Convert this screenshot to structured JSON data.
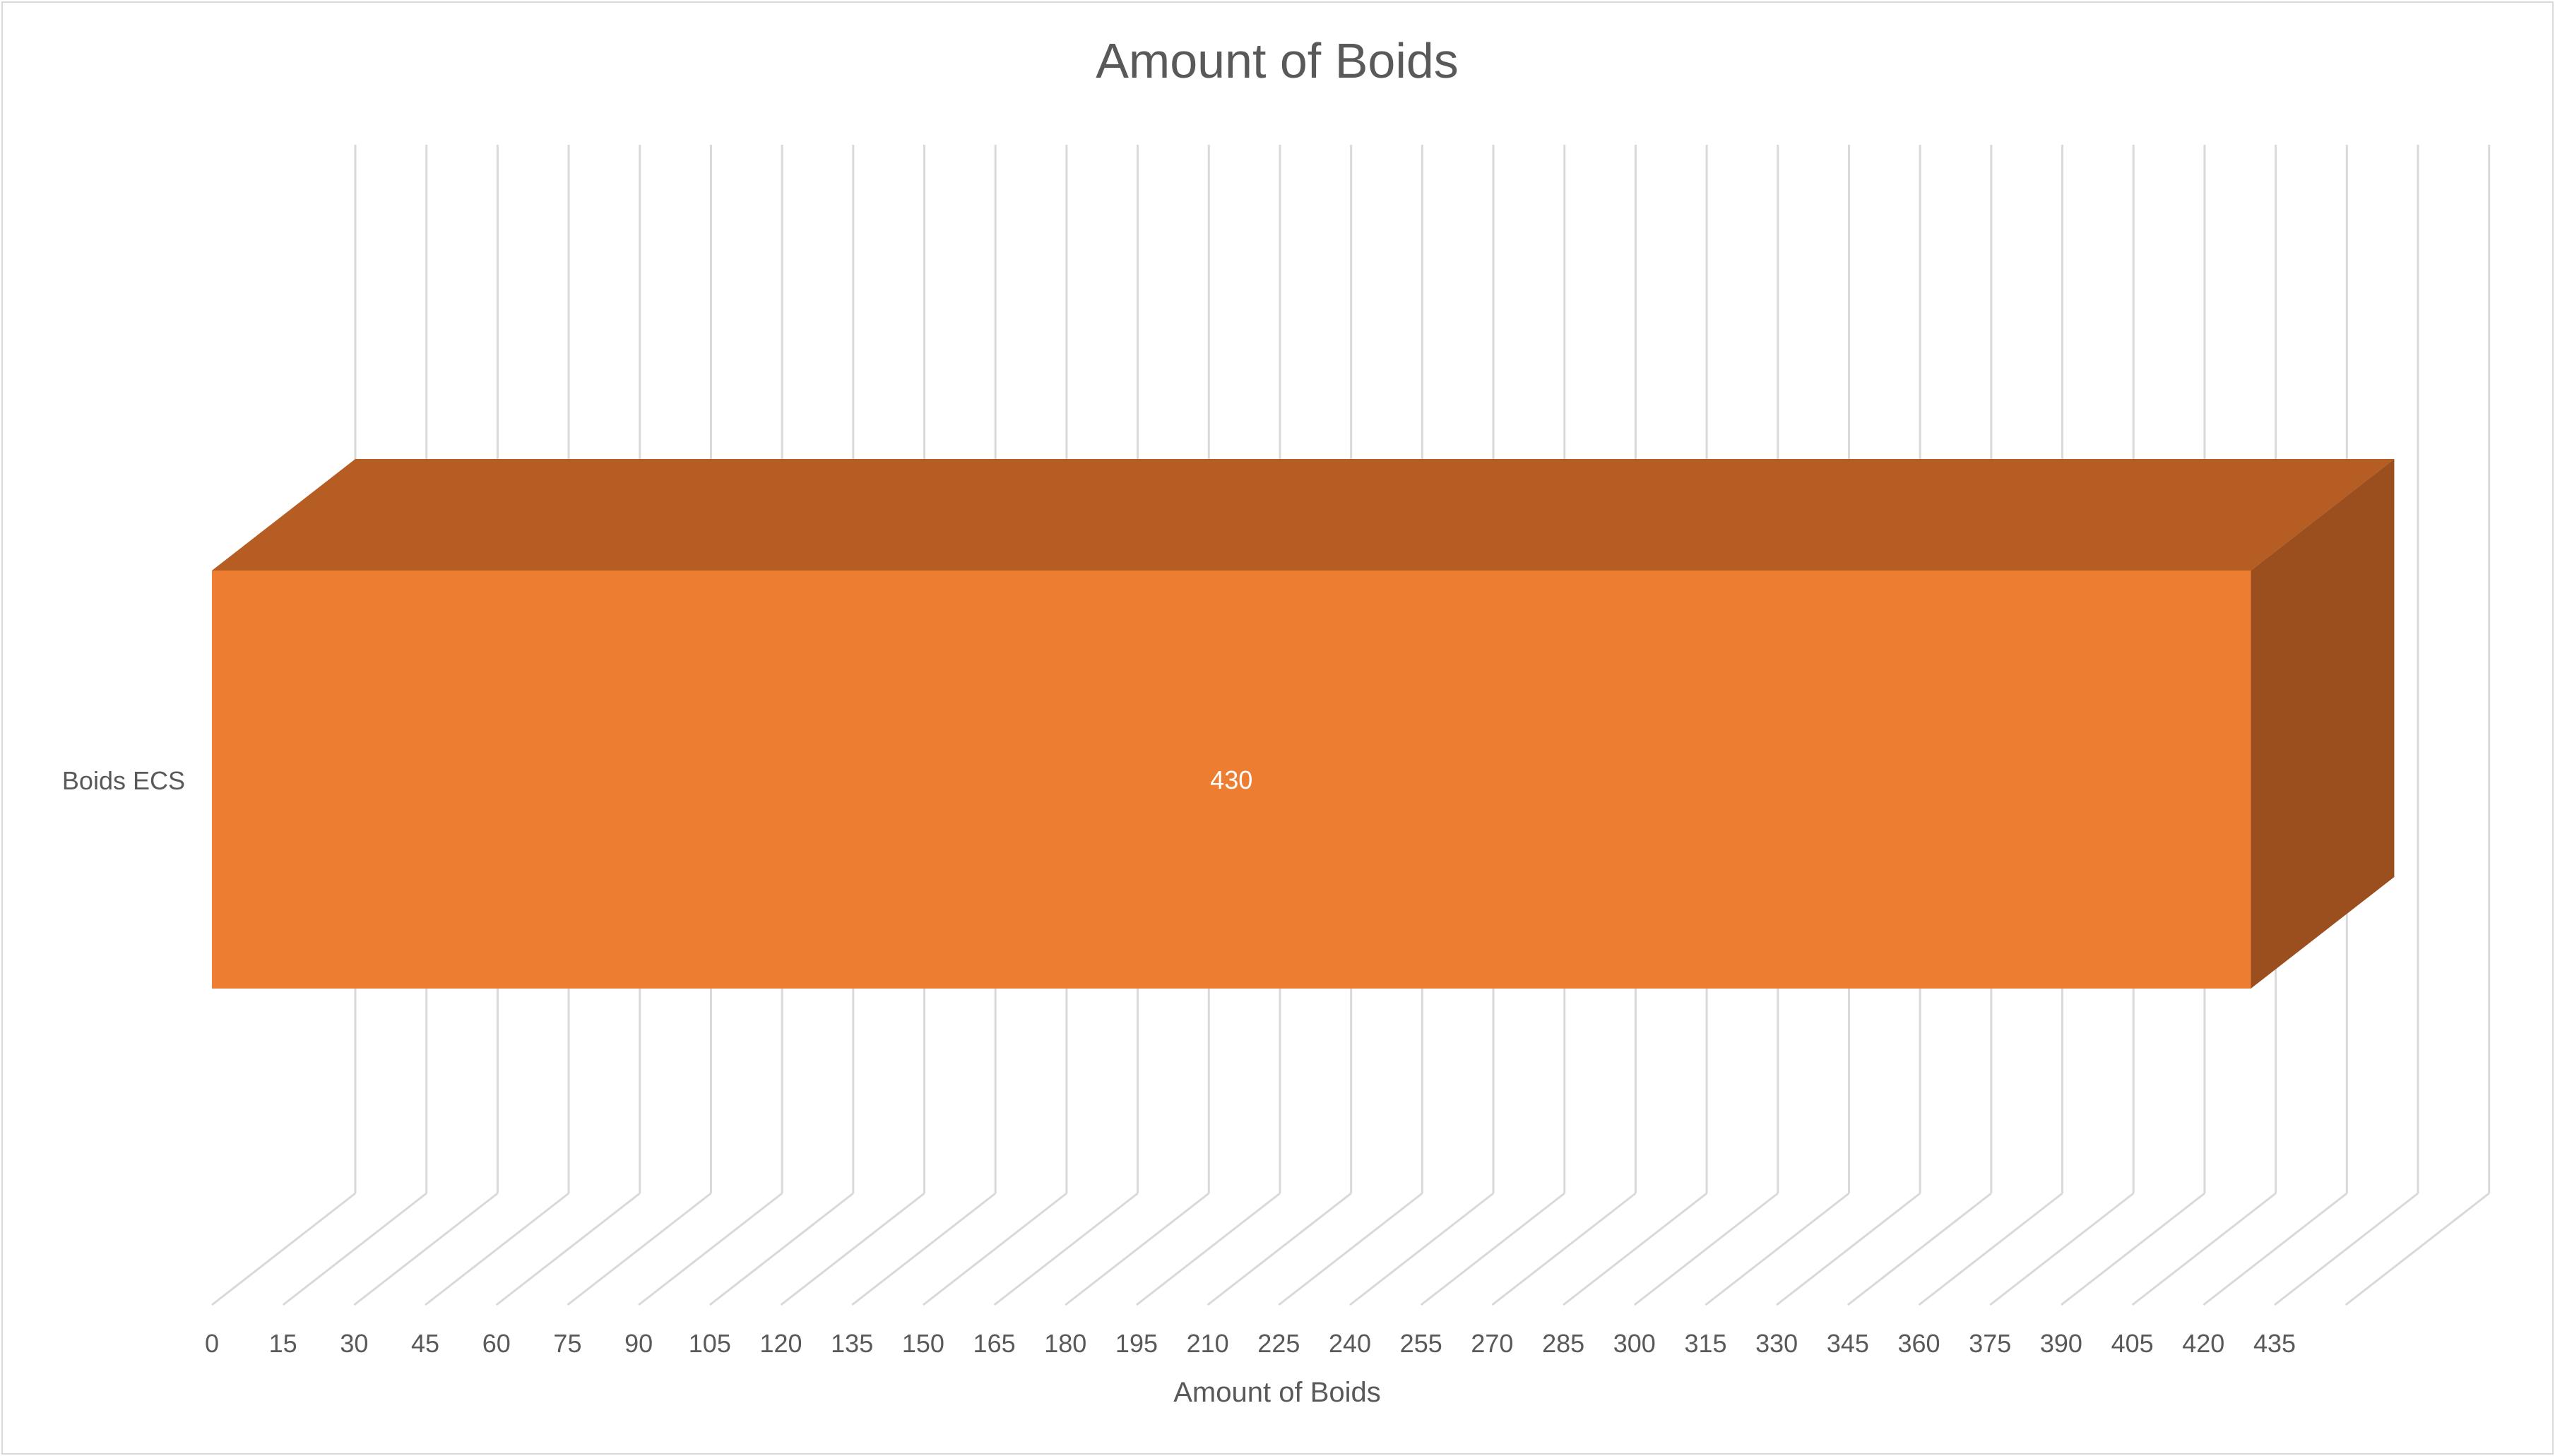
{
  "chart_data": {
    "type": "bar",
    "orientation": "horizontal",
    "style": "3d",
    "title": "Amount of Boids",
    "xlabel": "Amount of Boids",
    "ylabel": "",
    "categories": [
      "Boids ECS"
    ],
    "series": [
      {
        "values": [
          430
        ],
        "data_labels": [
          "430"
        ]
      }
    ],
    "xlim": [
      0,
      435
    ],
    "x_ticks": [
      "0",
      "15",
      "30",
      "45",
      "60",
      "75",
      "90",
      "105",
      "120",
      "135",
      "150",
      "165",
      "180",
      "195",
      "210",
      "225",
      "240",
      "255",
      "270",
      "285",
      "300",
      "315",
      "330",
      "345",
      "360",
      "375",
      "390",
      "405",
      "420",
      "435"
    ],
    "grid": true,
    "legend": "none",
    "colors": {
      "bar_front": "#ED7D31",
      "bar_top": "#B55D22",
      "bar_side": "#9B4E1E",
      "grid": "#d9d9d9",
      "text": "#595959",
      "label": "#ffffff"
    }
  }
}
